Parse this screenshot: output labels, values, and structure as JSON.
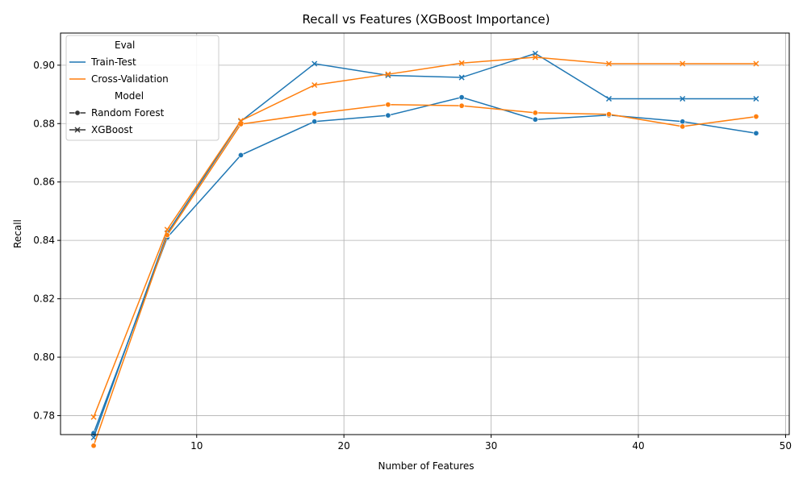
{
  "chart_data": {
    "type": "line",
    "title": "Recall vs Features (XGBoost Importance)",
    "xlabel": "Number of Features",
    "ylabel": "Recall",
    "xlim": [
      0.75,
      50.25
    ],
    "ylim": [
      0.7735,
      0.911
    ],
    "xticks": [
      10,
      20,
      30,
      40,
      50
    ],
    "yticks": [
      0.78,
      0.8,
      0.82,
      0.84,
      0.86,
      0.88,
      0.9
    ],
    "ytick_labels": [
      "0.78",
      "0.80",
      "0.82",
      "0.84",
      "0.86",
      "0.88",
      "0.90"
    ],
    "grid": true,
    "legend": {
      "placement": "top-left",
      "hue_title": "Eval",
      "style_title": "Model",
      "hue_entries": [
        {
          "label": "Train-Test",
          "color": "#1f77b4"
        },
        {
          "label": "Cross-Validation",
          "color": "#ff7f0e"
        }
      ],
      "style_entries": [
        {
          "label": "Random Forest",
          "marker": "circle"
        },
        {
          "label": "XGBoost",
          "marker": "x"
        }
      ]
    },
    "x": [
      3,
      8,
      13,
      18,
      23,
      28,
      33,
      38,
      43,
      48
    ],
    "series": [
      {
        "eval": "Train-Test",
        "model": "Random Forest",
        "color": "#1f77b4",
        "marker": "circle",
        "values": [
          0.774,
          0.841,
          0.8692,
          0.8807,
          0.8828,
          0.889,
          0.8814,
          0.8829,
          0.8807,
          0.8767
        ]
      },
      {
        "eval": "Train-Test",
        "model": "XGBoost",
        "color": "#1f77b4",
        "marker": "x",
        "values": [
          0.7725,
          0.8425,
          0.8808,
          0.9005,
          0.8965,
          0.8958,
          0.904,
          0.8885,
          0.8885,
          0.8885
        ]
      },
      {
        "eval": "Cross-Validation",
        "model": "Random Forest",
        "color": "#ff7f0e",
        "marker": "circle",
        "values": [
          0.7697,
          0.8418,
          0.8798,
          0.8834,
          0.8865,
          0.8861,
          0.8837,
          0.8832,
          0.879,
          0.8824
        ]
      },
      {
        "eval": "Cross-Validation",
        "model": "XGBoost",
        "color": "#ff7f0e",
        "marker": "x",
        "values": [
          0.7795,
          0.8437,
          0.881,
          0.8932,
          0.8969,
          0.9007,
          0.9027,
          0.9005,
          0.9005,
          0.9005
        ]
      }
    ]
  }
}
